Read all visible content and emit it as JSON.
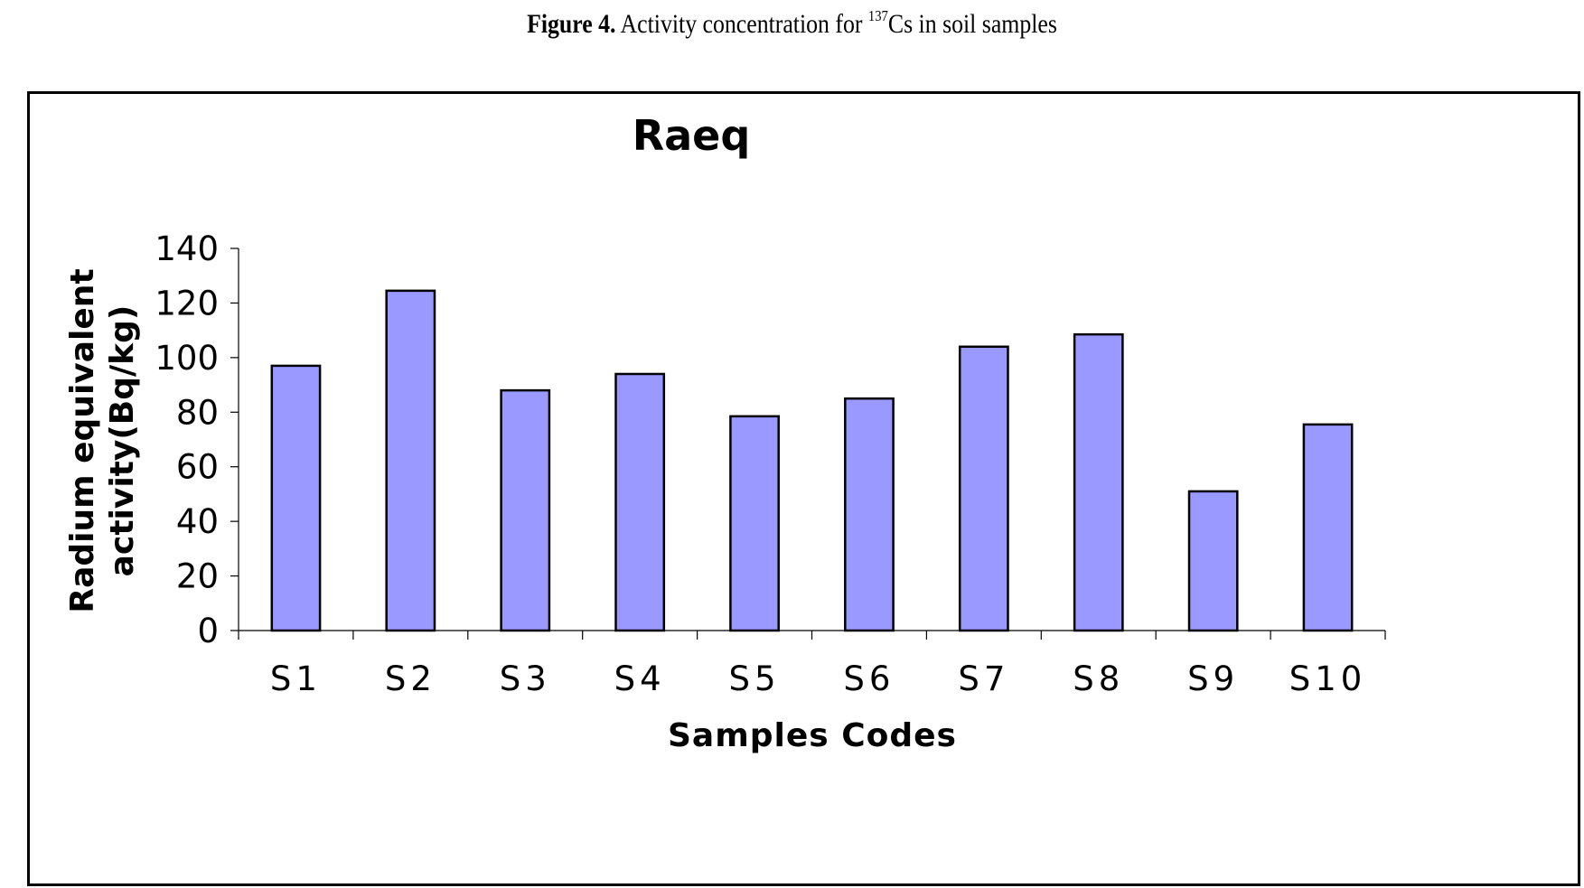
{
  "caption": {
    "label": "Figure 4.",
    "pre": "Activity concentration for",
    "sup": "137",
    "post": "Cs in soil samples"
  },
  "chart_data": {
    "type": "bar",
    "title": "Raeq",
    "xlabel": "Samples Codes",
    "ylabel_lines": [
      "Radium equivalent",
      "activity(Bq/kg)"
    ],
    "categories": [
      "S1",
      "S2",
      "S3",
      "S4",
      "S5",
      "S6",
      "S7",
      "S8",
      "S9",
      "S10"
    ],
    "values": [
      97,
      124.5,
      88,
      94,
      78.5,
      85,
      104,
      108.5,
      51,
      75.5
    ],
    "ylim": [
      0,
      140
    ],
    "yticks": [
      0,
      20,
      40,
      60,
      80,
      100,
      120,
      140
    ],
    "grid": false,
    "legend": "none",
    "bar_color": "#9999ff",
    "bar_edge_color": "#000000"
  }
}
